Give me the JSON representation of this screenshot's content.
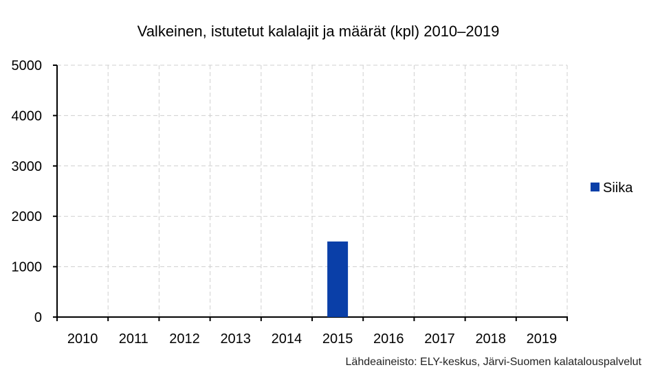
{
  "chart_data": {
    "type": "bar",
    "title": "Valkeinen, istutetut kalalajit ja määrät (kpl) 2010–2019",
    "xlabel": "",
    "ylabel": "",
    "categories": [
      "2010",
      "2011",
      "2012",
      "2013",
      "2014",
      "2015",
      "2016",
      "2017",
      "2018",
      "2019"
    ],
    "series": [
      {
        "name": "Siika",
        "color": "#0a3fa8",
        "values": [
          0,
          0,
          0,
          0,
          0,
          1500,
          0,
          0,
          0,
          0
        ]
      }
    ],
    "ylim": [
      0,
      5000
    ],
    "yticks": [
      0,
      1000,
      2000,
      3000,
      4000,
      5000
    ],
    "grid": true,
    "legend_position": "right",
    "source": "Lähdeaineisto: ELY-keskus, Järvi-Suomen kalatalouspalvelut"
  }
}
